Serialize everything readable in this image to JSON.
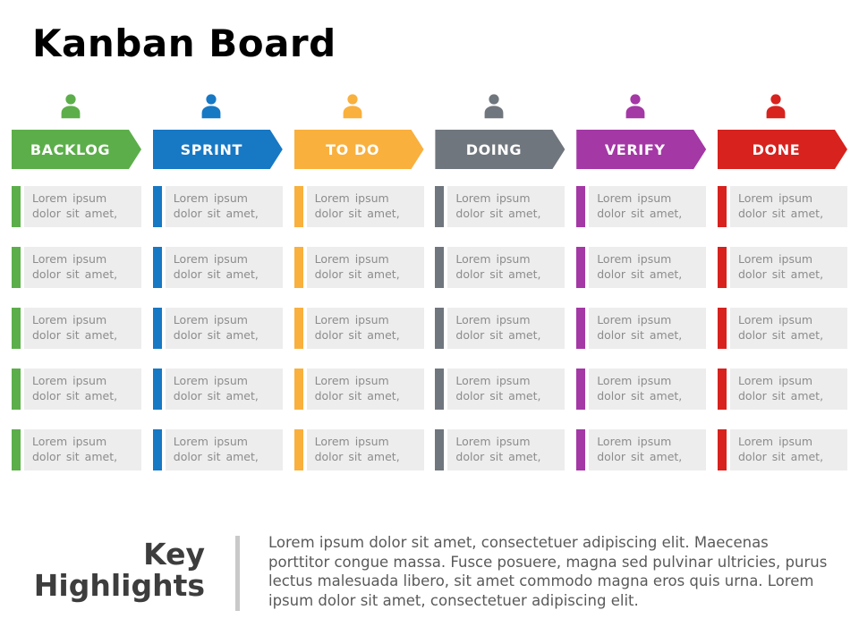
{
  "title": "Kanban Board",
  "colors": {
    "card_background": "#EDEDED",
    "divider": "#C9C9C9",
    "title_text": "#000000",
    "heading_text": "#3D3D3D",
    "body_text": "#5A5A5A",
    "card_text": "#8C8C8C"
  },
  "columns": [
    {
      "label": "BACKLOG",
      "color": "#5CAE4A",
      "icon": "person-icon",
      "cards": [
        "Lorem ipsum dolor sit amet,",
        "Lorem ipsum dolor sit amet,",
        "Lorem ipsum dolor sit amet,",
        "Lorem ipsum dolor sit amet,",
        "Lorem ipsum dolor sit amet,"
      ]
    },
    {
      "label": "SPRINT",
      "color": "#1778C4",
      "icon": "person-icon",
      "cards": [
        "Lorem ipsum dolor sit amet,",
        "Lorem ipsum dolor sit amet,",
        "Lorem ipsum dolor sit amet,",
        "Lorem ipsum dolor sit amet,",
        "Lorem ipsum dolor sit amet,"
      ]
    },
    {
      "label": "TO DO",
      "color": "#F9B03D",
      "icon": "person-icon",
      "cards": [
        "Lorem ipsum dolor sit amet,",
        "Lorem ipsum dolor sit amet,",
        "Lorem ipsum dolor sit amet,",
        "Lorem ipsum dolor sit amet,",
        "Lorem ipsum dolor sit amet,"
      ]
    },
    {
      "label": "DOING",
      "color": "#70767D",
      "icon": "person-icon",
      "cards": [
        "Lorem ipsum dolor sit amet,",
        "Lorem ipsum dolor sit amet,",
        "Lorem ipsum dolor sit amet,",
        "Lorem ipsum dolor sit amet,",
        "Lorem ipsum dolor sit amet,"
      ]
    },
    {
      "label": "VERIFY",
      "color": "#A438A5",
      "icon": "person-icon",
      "cards": [
        "Lorem ipsum dolor sit amet,",
        "Lorem ipsum dolor sit amet,",
        "Lorem ipsum dolor sit amet,",
        "Lorem ipsum dolor sit amet,",
        "Lorem ipsum dolor sit amet,"
      ]
    },
    {
      "label": "DONE",
      "color": "#D7221E",
      "icon": "person-icon",
      "cards": [
        "Lorem ipsum dolor sit amet,",
        "Lorem ipsum dolor sit amet,",
        "Lorem ipsum dolor sit amet,",
        "Lorem ipsum dolor sit amet,",
        "Lorem ipsum dolor sit amet,"
      ]
    }
  ],
  "highlights": {
    "heading": "Key Highlights",
    "body": "Lorem ipsum dolor sit amet, consectetuer adipiscing elit. Maecenas porttitor congue massa. Fusce posuere, magna sed pulvinar ultricies, purus lectus malesuada libero, sit amet commodo magna eros quis urna. Lorem ipsum dolor sit amet, consectetuer adipiscing elit."
  }
}
